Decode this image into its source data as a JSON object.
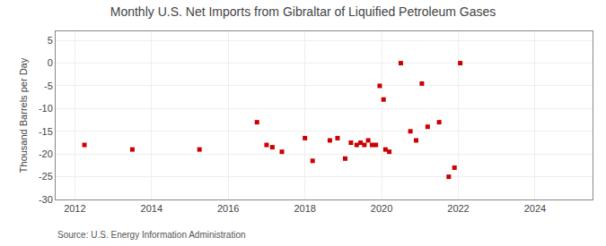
{
  "chart_data": {
    "type": "scatter",
    "title": "Monthly U.S. Net Imports from Gibraltar of Liquified Petroleum Gases",
    "ylabel": "Thousand Barrels per Day",
    "annotations": [
      "Source: U.S. Energy Information Administration"
    ],
    "color": "#cc0000",
    "marker": "square",
    "grid": true,
    "xlim": [
      2011.5,
      2025.5
    ],
    "ylim": [
      -30,
      7
    ],
    "xticks": [
      2012,
      2014,
      2016,
      2018,
      2020,
      2022,
      2024
    ],
    "yticks": [
      5,
      0,
      -5,
      -10,
      -15,
      -20,
      -25,
      -30
    ],
    "x": [
      2012.25,
      2013.5,
      2015.25,
      2016.75,
      2017.0,
      2017.15,
      2017.4,
      2018.0,
      2018.2,
      2018.65,
      2018.85,
      2019.05,
      2019.2,
      2019.35,
      2019.45,
      2019.55,
      2019.65,
      2019.75,
      2019.85,
      2019.95,
      2020.05,
      2020.1,
      2020.2,
      2020.5,
      2020.75,
      2020.9,
      2021.05,
      2021.2,
      2021.5,
      2021.75,
      2021.9,
      2022.05
    ],
    "values": [
      -18,
      -19,
      -19,
      -13,
      -18,
      -18.5,
      -19.5,
      -16.5,
      -21.5,
      -17,
      -16.5,
      -21,
      -17.5,
      -18,
      -17.5,
      -18,
      -17,
      -18,
      -18,
      -5,
      -8,
      -19,
      -19.5,
      0,
      -15,
      -17,
      -4.5,
      -14,
      -13,
      -25,
      -23,
      0
    ]
  }
}
